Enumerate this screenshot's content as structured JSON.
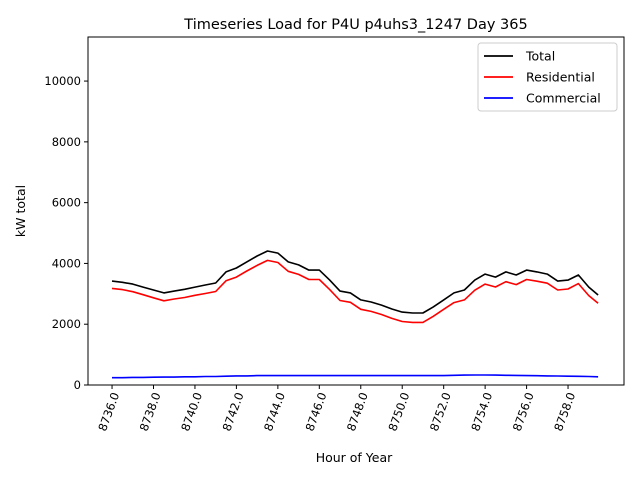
{
  "chart_data": {
    "type": "line",
    "title": "Timeseries Load for P4U p4uhs3_1247  Day 365",
    "xlabel": "Hour of Year",
    "ylabel": "kW total",
    "xlim": [
      8734.84,
      8760.7
    ],
    "ylim": [
      0,
      11450
    ],
    "xticks": [
      8736,
      8738,
      8740,
      8742,
      8744,
      8746,
      8748,
      8750,
      8752,
      8754,
      8756,
      8758
    ],
    "xtick_labels": [
      "8736.0",
      "8738.0",
      "8740.0",
      "8742.0",
      "8744.0",
      "8746.0",
      "8748.0",
      "8750.0",
      "8752.0",
      "8754.0",
      "8756.0",
      "8758.0"
    ],
    "yticks": [
      0,
      2000,
      4000,
      6000,
      8000,
      10000
    ],
    "ytick_labels": [
      "0",
      "2000",
      "4000",
      "6000",
      "8000",
      "10000"
    ],
    "grid": false,
    "legend_position": "top-right",
    "x": [
      8736,
      8736.5,
      8737,
      8737.5,
      8738,
      8738.5,
      8739,
      8739.5,
      8740,
      8740.5,
      8741,
      8741.5,
      8742,
      8742.5,
      8743,
      8743.5,
      8744,
      8744.5,
      8745,
      8745.5,
      8746,
      8746.5,
      8747,
      8747.5,
      8748,
      8748.5,
      8749,
      8749.5,
      8750,
      8750.5,
      8751,
      8751.5,
      8752,
      8752.5,
      8753,
      8753.5,
      8754,
      8754.5,
      8755,
      8755.5,
      8756,
      8756.5,
      8757,
      8757.5,
      8758,
      8758.5,
      8759,
      8759.45
    ],
    "series": [
      {
        "name": "Total",
        "color": "#000000",
        "values": [
          3420,
          3380,
          3320,
          3220,
          3125,
          3030,
          3090,
          3150,
          3220,
          3290,
          3355,
          3720,
          3850,
          4050,
          4245,
          4410,
          4340,
          4050,
          3950,
          3780,
          3780,
          3450,
          3090,
          3030,
          2800,
          2730,
          2630,
          2500,
          2400,
          2370,
          2370,
          2570,
          2800,
          3030,
          3125,
          3450,
          3650,
          3550,
          3720,
          3620,
          3780,
          3720,
          3650,
          3420,
          3450,
          3620,
          3220,
          2960
        ]
      },
      {
        "name": "Residential",
        "color": "#ff0000",
        "values": [
          3180,
          3140,
          3070,
          2970,
          2870,
          2770,
          2830,
          2880,
          2950,
          3010,
          3075,
          3430,
          3550,
          3750,
          3935,
          4100,
          4030,
          3740,
          3640,
          3470,
          3470,
          3140,
          2780,
          2720,
          2490,
          2420,
          2320,
          2190,
          2090,
          2060,
          2060,
          2260,
          2490,
          2710,
          2800,
          3120,
          3320,
          3225,
          3400,
          3305,
          3470,
          3415,
          3350,
          3125,
          3160,
          3335,
          2940,
          2690
        ]
      },
      {
        "name": "Commercial",
        "color": "#0000ff",
        "values": [
          240,
          240,
          250,
          250,
          255,
          260,
          260,
          270,
          270,
          280,
          280,
          290,
          300,
          300,
          310,
          310,
          310,
          310,
          310,
          310,
          310,
          310,
          310,
          310,
          310,
          310,
          310,
          310,
          310,
          310,
          310,
          310,
          310,
          320,
          325,
          330,
          330,
          325,
          320,
          315,
          310,
          305,
          300,
          295,
          290,
          285,
          280,
          270
        ]
      }
    ]
  }
}
